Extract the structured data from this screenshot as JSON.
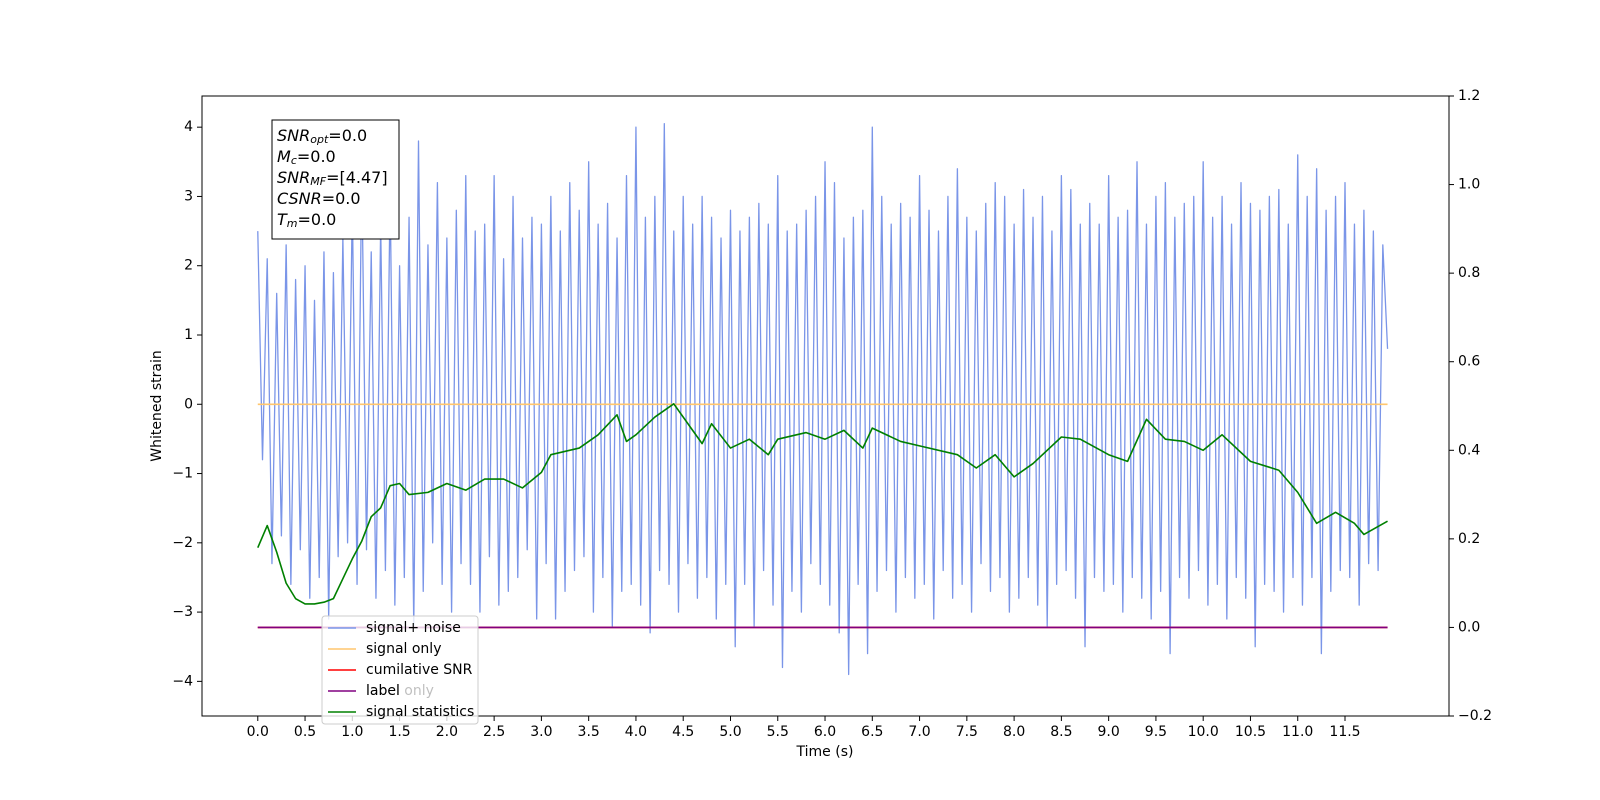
{
  "chart_data": {
    "type": "line",
    "xlabel": "Time (s)",
    "ylabel": "Whitened strain",
    "xlim": [
      -0.59,
      12.6
    ],
    "ylim": [
      -4.5,
      4.45
    ],
    "y2lim": [
      -0.2,
      1.2
    ],
    "xticks": [
      {
        "value": 0,
        "label": "0.0"
      },
      0.5,
      {
        "value": 1,
        "label": "1.0"
      },
      1.5,
      {
        "value": 2,
        "label": "2.0"
      },
      2.5,
      {
        "value": 3,
        "label": "3.0"
      },
      3.5,
      {
        "value": 4,
        "label": "4.0"
      },
      4.5,
      {
        "value": 5,
        "label": "5.0"
      },
      5.5,
      {
        "value": 6,
        "label": "6.0"
      },
      6.5,
      {
        "value": 7,
        "label": "7.0"
      },
      7.5,
      {
        "value": 8,
        "label": "8.0"
      },
      8.5,
      {
        "value": 9,
        "label": "9.0"
      },
      9.5,
      {
        "value": 10,
        "label": "10.0"
      },
      10.5,
      {
        "value": 11,
        "label": "11.0"
      },
      11.5
    ],
    "yticks": [
      {
        "value": -4,
        "label": "−4"
      },
      {
        "value": -3,
        "label": "−3"
      },
      {
        "value": -2,
        "label": "−2"
      },
      {
        "value": -1,
        "label": "−1"
      },
      0,
      1,
      2,
      3,
      4
    ],
    "y2ticks": [
      {
        "value": -0.2,
        "label": "−0.2"
      },
      {
        "value": 0,
        "label": "0.0"
      },
      0.2,
      0.4,
      0.6,
      0.8,
      {
        "value": 1,
        "label": "1.0"
      },
      1.2
    ],
    "legend": "lower left",
    "legend_hidden_labels": [
      "label only"
    ],
    "annotation_lines": [
      {
        "main": "SNR",
        "sub": "opt",
        "value": "=0.0"
      },
      {
        "main": "M",
        "sub": "c",
        "value": "=0.0"
      },
      {
        "main": "SNR",
        "sub": "MF",
        "value": "=[4.47]"
      },
      {
        "main": "CSNR",
        "value": "=0.0"
      },
      {
        "main": "T",
        "sub": "m",
        "value": "=0.0"
      }
    ],
    "series": [
      {
        "name": "signal+ noise",
        "color": "#7a95e8",
        "axis": "y",
        "x": [
          0,
          0.05,
          0.1,
          0.15,
          0.2,
          0.25,
          0.3,
          0.35,
          0.4,
          0.45,
          0.5,
          0.55,
          0.6,
          0.65,
          0.7,
          0.75,
          0.8,
          0.85,
          0.9,
          0.95,
          1,
          1.05,
          1.1,
          1.15,
          1.2,
          1.25,
          1.3,
          1.35,
          1.4,
          1.45,
          1.5,
          1.55,
          1.6,
          1.65,
          1.7,
          1.75,
          1.8,
          1.85,
          1.9,
          1.95,
          2,
          2.05,
          2.1,
          2.15,
          2.2,
          2.25,
          2.3,
          2.35,
          2.4,
          2.45,
          2.5,
          2.55,
          2.6,
          2.65,
          2.7,
          2.75,
          2.8,
          2.85,
          2.9,
          2.95,
          3,
          3.05,
          3.1,
          3.15,
          3.2,
          3.25,
          3.3,
          3.35,
          3.4,
          3.45,
          3.5,
          3.55,
          3.6,
          3.65,
          3.7,
          3.75,
          3.8,
          3.85,
          3.9,
          3.95,
          4,
          4.05,
          4.1,
          4.15,
          4.2,
          4.25,
          4.3,
          4.35,
          4.4,
          4.45,
          4.5,
          4.55,
          4.6,
          4.65,
          4.7,
          4.75,
          4.8,
          4.85,
          4.9,
          4.95,
          5,
          5.05,
          5.1,
          5.15,
          5.2,
          5.25,
          5.3,
          5.35,
          5.4,
          5.45,
          5.5,
          5.55,
          5.6,
          5.65,
          5.7,
          5.75,
          5.8,
          5.85,
          5.9,
          5.95,
          6,
          6.05,
          6.1,
          6.15,
          6.2,
          6.25,
          6.3,
          6.35,
          6.4,
          6.45,
          6.5,
          6.55,
          6.6,
          6.65,
          6.7,
          6.75,
          6.8,
          6.85,
          6.9,
          6.95,
          7,
          7.05,
          7.1,
          7.15,
          7.2,
          7.25,
          7.3,
          7.35,
          7.4,
          7.45,
          7.5,
          7.55,
          7.6,
          7.65,
          7.7,
          7.75,
          7.8,
          7.85,
          7.9,
          7.95,
          8,
          8.05,
          8.1,
          8.15,
          8.2,
          8.25,
          8.3,
          8.35,
          8.4,
          8.45,
          8.5,
          8.55,
          8.6,
          8.65,
          8.7,
          8.75,
          8.8,
          8.85,
          8.9,
          8.95,
          9,
          9.05,
          9.1,
          9.15,
          9.2,
          9.25,
          9.3,
          9.35,
          9.4,
          9.45,
          9.5,
          9.55,
          9.6,
          9.65,
          9.7,
          9.75,
          9.8,
          9.85,
          9.9,
          9.95,
          10,
          10.05,
          10.1,
          10.15,
          10.2,
          10.25,
          10.3,
          10.35,
          10.4,
          10.45,
          10.5,
          10.55,
          10.6,
          10.65,
          10.7,
          10.75,
          10.8,
          10.85,
          10.9,
          10.95,
          11,
          11.05,
          11.1,
          11.15,
          11.2,
          11.25,
          11.3,
          11.35,
          11.4,
          11.45,
          11.5,
          11.55,
          11.6,
          11.65,
          11.7,
          11.75,
          11.8,
          11.85,
          11.9,
          11.95
        ],
        "values": [
          2.5,
          -0.8,
          2.1,
          -2.3,
          1.6,
          -1.9,
          2.3,
          -2.6,
          1.8,
          -2.1,
          2.0,
          -2.8,
          1.5,
          -2.5,
          2.2,
          -3.1,
          1.9,
          -2.2,
          2.4,
          -2.0,
          2.9,
          -2.6,
          3.4,
          -2.1,
          2.2,
          -2.8,
          2.6,
          -2.4,
          3.1,
          -2.9,
          2.0,
          -2.5,
          2.7,
          -3.2,
          3.8,
          -2.7,
          2.3,
          -2.0,
          3.2,
          -2.6,
          2.4,
          -3.0,
          2.8,
          -2.3,
          3.3,
          -2.6,
          2.5,
          -3.0,
          2.6,
          -2.2,
          3.3,
          -2.9,
          2.1,
          -2.7,
          3.0,
          -2.5,
          2.4,
          -2.1,
          2.7,
          -3.1,
          2.6,
          -2.3,
          3.0,
          -3.1,
          2.5,
          -2.7,
          3.2,
          -2.4,
          2.8,
          -2.2,
          3.5,
          -3.0,
          2.6,
          -2.5,
          2.9,
          -3.2,
          2.4,
          -2.7,
          3.3,
          -2.6,
          4.0,
          -2.9,
          2.7,
          -3.3,
          3.0,
          -2.4,
          4.05,
          -2.6,
          2.5,
          -3.0,
          3.0,
          -2.3,
          2.6,
          -2.8,
          3.0,
          -2.5,
          2.7,
          -3.1,
          2.4,
          -2.6,
          2.8,
          -3.5,
          2.5,
          -2.6,
          2.7,
          -3.2,
          2.9,
          -2.4,
          2.6,
          -2.9,
          3.3,
          -3.8,
          2.5,
          -2.7,
          2.6,
          -3.0,
          2.8,
          -2.3,
          3.0,
          -2.6,
          3.5,
          -2.9,
          3.2,
          -3.3,
          2.4,
          -3.9,
          2.7,
          -2.6,
          2.8,
          -3.6,
          4.0,
          -2.7,
          3.0,
          -2.4,
          2.6,
          -3.0,
          2.9,
          -2.5,
          2.7,
          -2.8,
          3.3,
          -2.6,
          2.8,
          -3.1,
          2.5,
          -2.4,
          3.0,
          -2.8,
          3.4,
          -2.6,
          2.7,
          -3.0,
          2.5,
          -2.3,
          2.9,
          -2.7,
          3.2,
          -2.5,
          3.0,
          -3.0,
          2.6,
          -2.8,
          3.1,
          -2.5,
          2.7,
          -2.9,
          3.0,
          -3.2,
          2.5,
          -2.6,
          3.3,
          -2.4,
          3.1,
          -2.8,
          2.6,
          -3.5,
          2.9,
          -2.5,
          2.6,
          -2.7,
          3.3,
          -2.6,
          2.7,
          -3.0,
          2.8,
          -2.5,
          3.5,
          -2.8,
          2.6,
          -3.1,
          3.0,
          -2.7,
          3.2,
          -3.6,
          2.7,
          -2.5,
          2.9,
          -2.8,
          3.0,
          -2.4,
          3.5,
          -2.9,
          2.7,
          -2.6,
          3.0,
          -3.1,
          2.6,
          -2.5,
          3.2,
          -2.8,
          2.9,
          -3.5,
          2.8,
          -2.6,
          3.0,
          -2.7,
          3.1,
          -3.0,
          2.6,
          -2.5,
          3.6,
          -2.9,
          3.0,
          -2.5,
          3.4,
          -3.6,
          2.8,
          -2.7,
          3.0,
          -2.4,
          3.2,
          -2.5,
          2.6,
          -2.9,
          2.8,
          -2.3,
          2.5,
          -2.4,
          2.3,
          0.8
        ]
      },
      {
        "name": "signal only",
        "color": "#ffc66e",
        "axis": "y",
        "x": [
          0,
          11.95
        ],
        "values": [
          0,
          0
        ]
      },
      {
        "name": "cumilative SNR",
        "color": "#ff0000",
        "axis": "y2",
        "x": [
          0,
          11.95
        ],
        "values": [
          0,
          0
        ]
      },
      {
        "name": "label",
        "color": "#800080",
        "axis": "y2",
        "x": [
          0,
          11.95
        ],
        "values": [
          0,
          0
        ]
      },
      {
        "name": "signal statistics",
        "color": "#008000",
        "axis": "y2",
        "x": [
          0,
          0.1,
          0.2,
          0.3,
          0.4,
          0.5,
          0.6,
          0.7,
          0.8,
          0.9,
          1.0,
          1.1,
          1.2,
          1.3,
          1.4,
          1.5,
          1.6,
          1.8,
          2.0,
          2.2,
          2.4,
          2.6,
          2.8,
          3.0,
          3.1,
          3.4,
          3.6,
          3.8,
          3.9,
          4.0,
          4.2,
          4.4,
          4.6,
          4.7,
          4.8,
          5.0,
          5.2,
          5.4,
          5.5,
          5.8,
          6.0,
          6.2,
          6.4,
          6.5,
          6.8,
          7.0,
          7.4,
          7.6,
          7.8,
          8.0,
          8.2,
          8.5,
          8.7,
          9.0,
          9.2,
          9.4,
          9.6,
          9.8,
          10.0,
          10.2,
          10.5,
          10.8,
          11.0,
          11.2,
          11.4,
          11.6,
          11.7,
          11.95
        ],
        "values": [
          0.18,
          0.23,
          0.17,
          0.1,
          0.065,
          0.053,
          0.053,
          0.057,
          0.065,
          0.11,
          0.155,
          0.195,
          0.25,
          0.27,
          0.32,
          0.325,
          0.3,
          0.305,
          0.325,
          0.31,
          0.335,
          0.335,
          0.315,
          0.35,
          0.39,
          0.405,
          0.435,
          0.48,
          0.42,
          0.435,
          0.475,
          0.505,
          0.445,
          0.415,
          0.46,
          0.405,
          0.425,
          0.39,
          0.425,
          0.44,
          0.425,
          0.445,
          0.405,
          0.45,
          0.42,
          0.41,
          0.39,
          0.36,
          0.39,
          0.34,
          0.37,
          0.43,
          0.425,
          0.39,
          0.375,
          0.47,
          0.425,
          0.42,
          0.4,
          0.435,
          0.375,
          0.355,
          0.305,
          0.235,
          0.26,
          0.235,
          0.21,
          0.24
        ]
      }
    ]
  }
}
